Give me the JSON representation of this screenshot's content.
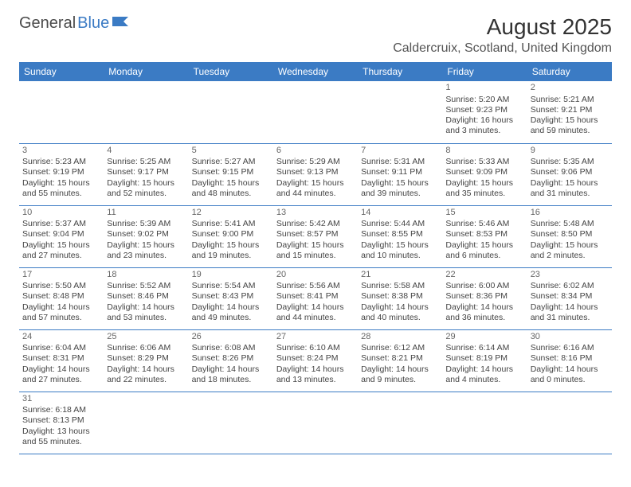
{
  "logo": {
    "text1": "General",
    "text2": "Blue"
  },
  "title": "August 2025",
  "location": "Caldercruix, Scotland, United Kingdom",
  "colors": {
    "header_bg": "#3b7bc4",
    "header_text": "#ffffff",
    "border": "#3b7bc4",
    "body_text": "#444444",
    "title_text": "#333333"
  },
  "weekdays": [
    "Sunday",
    "Monday",
    "Tuesday",
    "Wednesday",
    "Thursday",
    "Friday",
    "Saturday"
  ],
  "weeks": [
    [
      null,
      null,
      null,
      null,
      null,
      {
        "d": "1",
        "sr": "Sunrise: 5:20 AM",
        "ss": "Sunset: 9:23 PM",
        "dl1": "Daylight: 16 hours",
        "dl2": "and 3 minutes."
      },
      {
        "d": "2",
        "sr": "Sunrise: 5:21 AM",
        "ss": "Sunset: 9:21 PM",
        "dl1": "Daylight: 15 hours",
        "dl2": "and 59 minutes."
      }
    ],
    [
      {
        "d": "3",
        "sr": "Sunrise: 5:23 AM",
        "ss": "Sunset: 9:19 PM",
        "dl1": "Daylight: 15 hours",
        "dl2": "and 55 minutes."
      },
      {
        "d": "4",
        "sr": "Sunrise: 5:25 AM",
        "ss": "Sunset: 9:17 PM",
        "dl1": "Daylight: 15 hours",
        "dl2": "and 52 minutes."
      },
      {
        "d": "5",
        "sr": "Sunrise: 5:27 AM",
        "ss": "Sunset: 9:15 PM",
        "dl1": "Daylight: 15 hours",
        "dl2": "and 48 minutes."
      },
      {
        "d": "6",
        "sr": "Sunrise: 5:29 AM",
        "ss": "Sunset: 9:13 PM",
        "dl1": "Daylight: 15 hours",
        "dl2": "and 44 minutes."
      },
      {
        "d": "7",
        "sr": "Sunrise: 5:31 AM",
        "ss": "Sunset: 9:11 PM",
        "dl1": "Daylight: 15 hours",
        "dl2": "and 39 minutes."
      },
      {
        "d": "8",
        "sr": "Sunrise: 5:33 AM",
        "ss": "Sunset: 9:09 PM",
        "dl1": "Daylight: 15 hours",
        "dl2": "and 35 minutes."
      },
      {
        "d": "9",
        "sr": "Sunrise: 5:35 AM",
        "ss": "Sunset: 9:06 PM",
        "dl1": "Daylight: 15 hours",
        "dl2": "and 31 minutes."
      }
    ],
    [
      {
        "d": "10",
        "sr": "Sunrise: 5:37 AM",
        "ss": "Sunset: 9:04 PM",
        "dl1": "Daylight: 15 hours",
        "dl2": "and 27 minutes."
      },
      {
        "d": "11",
        "sr": "Sunrise: 5:39 AM",
        "ss": "Sunset: 9:02 PM",
        "dl1": "Daylight: 15 hours",
        "dl2": "and 23 minutes."
      },
      {
        "d": "12",
        "sr": "Sunrise: 5:41 AM",
        "ss": "Sunset: 9:00 PM",
        "dl1": "Daylight: 15 hours",
        "dl2": "and 19 minutes."
      },
      {
        "d": "13",
        "sr": "Sunrise: 5:42 AM",
        "ss": "Sunset: 8:57 PM",
        "dl1": "Daylight: 15 hours",
        "dl2": "and 15 minutes."
      },
      {
        "d": "14",
        "sr": "Sunrise: 5:44 AM",
        "ss": "Sunset: 8:55 PM",
        "dl1": "Daylight: 15 hours",
        "dl2": "and 10 minutes."
      },
      {
        "d": "15",
        "sr": "Sunrise: 5:46 AM",
        "ss": "Sunset: 8:53 PM",
        "dl1": "Daylight: 15 hours",
        "dl2": "and 6 minutes."
      },
      {
        "d": "16",
        "sr": "Sunrise: 5:48 AM",
        "ss": "Sunset: 8:50 PM",
        "dl1": "Daylight: 15 hours",
        "dl2": "and 2 minutes."
      }
    ],
    [
      {
        "d": "17",
        "sr": "Sunrise: 5:50 AM",
        "ss": "Sunset: 8:48 PM",
        "dl1": "Daylight: 14 hours",
        "dl2": "and 57 minutes."
      },
      {
        "d": "18",
        "sr": "Sunrise: 5:52 AM",
        "ss": "Sunset: 8:46 PM",
        "dl1": "Daylight: 14 hours",
        "dl2": "and 53 minutes."
      },
      {
        "d": "19",
        "sr": "Sunrise: 5:54 AM",
        "ss": "Sunset: 8:43 PM",
        "dl1": "Daylight: 14 hours",
        "dl2": "and 49 minutes."
      },
      {
        "d": "20",
        "sr": "Sunrise: 5:56 AM",
        "ss": "Sunset: 8:41 PM",
        "dl1": "Daylight: 14 hours",
        "dl2": "and 44 minutes."
      },
      {
        "d": "21",
        "sr": "Sunrise: 5:58 AM",
        "ss": "Sunset: 8:38 PM",
        "dl1": "Daylight: 14 hours",
        "dl2": "and 40 minutes."
      },
      {
        "d": "22",
        "sr": "Sunrise: 6:00 AM",
        "ss": "Sunset: 8:36 PM",
        "dl1": "Daylight: 14 hours",
        "dl2": "and 36 minutes."
      },
      {
        "d": "23",
        "sr": "Sunrise: 6:02 AM",
        "ss": "Sunset: 8:34 PM",
        "dl1": "Daylight: 14 hours",
        "dl2": "and 31 minutes."
      }
    ],
    [
      {
        "d": "24",
        "sr": "Sunrise: 6:04 AM",
        "ss": "Sunset: 8:31 PM",
        "dl1": "Daylight: 14 hours",
        "dl2": "and 27 minutes."
      },
      {
        "d": "25",
        "sr": "Sunrise: 6:06 AM",
        "ss": "Sunset: 8:29 PM",
        "dl1": "Daylight: 14 hours",
        "dl2": "and 22 minutes."
      },
      {
        "d": "26",
        "sr": "Sunrise: 6:08 AM",
        "ss": "Sunset: 8:26 PM",
        "dl1": "Daylight: 14 hours",
        "dl2": "and 18 minutes."
      },
      {
        "d": "27",
        "sr": "Sunrise: 6:10 AM",
        "ss": "Sunset: 8:24 PM",
        "dl1": "Daylight: 14 hours",
        "dl2": "and 13 minutes."
      },
      {
        "d": "28",
        "sr": "Sunrise: 6:12 AM",
        "ss": "Sunset: 8:21 PM",
        "dl1": "Daylight: 14 hours",
        "dl2": "and 9 minutes."
      },
      {
        "d": "29",
        "sr": "Sunrise: 6:14 AM",
        "ss": "Sunset: 8:19 PM",
        "dl1": "Daylight: 14 hours",
        "dl2": "and 4 minutes."
      },
      {
        "d": "30",
        "sr": "Sunrise: 6:16 AM",
        "ss": "Sunset: 8:16 PM",
        "dl1": "Daylight: 14 hours",
        "dl2": "and 0 minutes."
      }
    ],
    [
      {
        "d": "31",
        "sr": "Sunrise: 6:18 AM",
        "ss": "Sunset: 8:13 PM",
        "dl1": "Daylight: 13 hours",
        "dl2": "and 55 minutes."
      },
      null,
      null,
      null,
      null,
      null,
      null
    ]
  ]
}
